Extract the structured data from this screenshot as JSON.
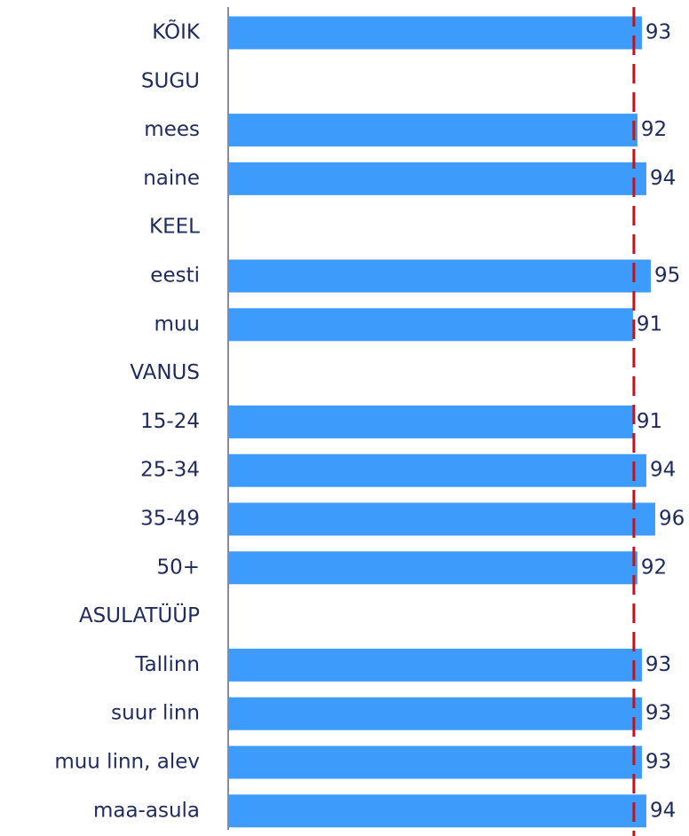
{
  "chart_data": {
    "type": "bar",
    "orientation": "horizontal",
    "categories": [
      "KÕIK",
      "SUGU",
      "mees",
      "naine",
      "KEEL",
      "eesti",
      "muu",
      "VANUS",
      "15-24",
      "25-34",
      "35-49",
      "50+",
      "ASULATÜÜP",
      "Tallinn",
      "suur linn",
      "muu linn, alev",
      "maa-asula"
    ],
    "values": [
      93,
      null,
      92,
      94,
      null,
      95,
      91,
      null,
      91,
      94,
      96,
      92,
      null,
      93,
      93,
      93,
      94
    ],
    "color": "#3d9bfb",
    "reference_value": 91.2,
    "reference_color": "#c0141c",
    "xlim": [
      0,
      100
    ]
  }
}
